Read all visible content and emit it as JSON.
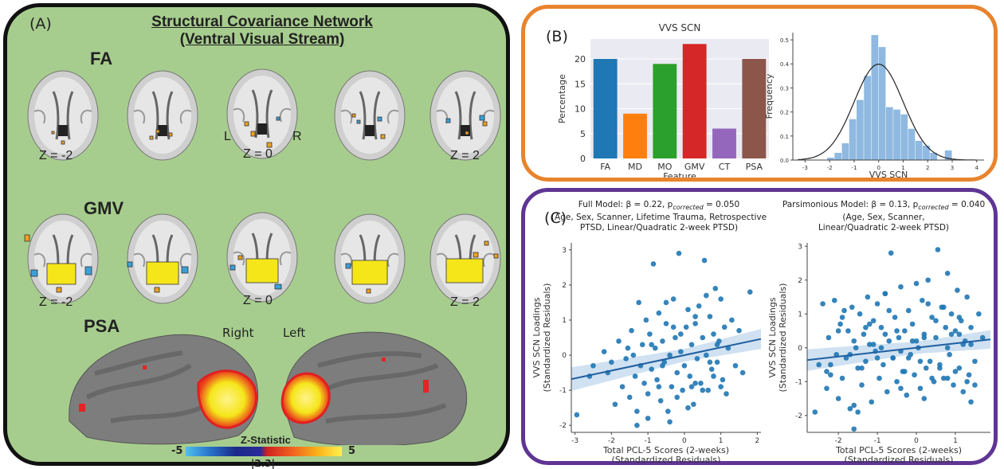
{
  "panel_a": {
    "letter": "(A)",
    "title_line1": "Structural Covariance Network",
    "title_line2": "(Ventral Visual Stream)",
    "row_fa": "FA",
    "row_gmv": "GMV",
    "row_psa": "PSA",
    "fa_z_labels": [
      "Z = -2",
      "Z = 0",
      "Z = 2"
    ],
    "gmv_z_labels": [
      "Z = -2",
      "Z = 0",
      "Z = 2"
    ],
    "orient_left": "L",
    "orient_right": "R",
    "hemi_right": "Right",
    "hemi_left": "Left",
    "colorbar_title": "Z-Statistic",
    "colorbar_min": "-5",
    "colorbar_max": "5",
    "colorbar_threshold": "|2.3|",
    "colors": {
      "background": "#a7cd8e",
      "positive": "#f5e61a",
      "negative": "#3aa0d8"
    }
  },
  "panel_b": {
    "letter": "(B)",
    "colors": {
      "border": "#e8842d"
    }
  },
  "panel_c": {
    "letter": "(C)",
    "left_title_1": "Full Model: β = 0.22, p",
    "left_title_sub": "corrected",
    "left_title_2": " = 0.050",
    "left_title_line2": "(Age, Sex, Scanner, Lifetime Trauma, Retrospective",
    "left_title_line3": "PTSD, Linear/Quadratic 2-week PTSD)",
    "right_title_1": "Parsimonious Model: β = 0.13, p",
    "right_title_sub": "corrected",
    "right_title_2": " = 0.040",
    "right_title_line2": "(Age, Sex, Scanner,",
    "right_title_line3": "Linear/Quadratic 2-week PTSD)",
    "colors": {
      "border": "#5f3594",
      "points": "#1f77b4"
    }
  },
  "chart_data": [
    {
      "type": "bar",
      "title": "VVS SCN",
      "xlabel": "Feature",
      "ylabel": "Percentage",
      "categories": [
        "FA",
        "MD",
        "MO",
        "GMV",
        "CT",
        "PSA"
      ],
      "values": [
        20,
        9,
        19,
        23,
        6,
        20
      ],
      "colors": [
        "#1f77b4",
        "#ff7f0e",
        "#2ca02c",
        "#d62728",
        "#9467bd",
        "#8c564b"
      ],
      "ylim": [
        0,
        24
      ],
      "yticks": [
        0,
        5,
        10,
        15,
        20
      ],
      "grid": true
    },
    {
      "type": "bar",
      "title": "",
      "xlabel": "VVS SCN",
      "ylabel": "Frequency",
      "bins": [
        {
          "x0": -2.1,
          "x1": -1.8,
          "f": 0.01
        },
        {
          "x0": -1.8,
          "x1": -1.5,
          "f": 0.03
        },
        {
          "x0": -1.5,
          "x1": -1.2,
          "f": 0.07
        },
        {
          "x0": -1.2,
          "x1": -0.9,
          "f": 0.17
        },
        {
          "x0": -0.9,
          "x1": -0.6,
          "f": 0.25
        },
        {
          "x0": -0.6,
          "x1": -0.3,
          "f": 0.35
        },
        {
          "x0": -0.3,
          "x1": 0.0,
          "f": 0.52
        },
        {
          "x0": 0.0,
          "x1": 0.3,
          "f": 0.47
        },
        {
          "x0": 0.3,
          "x1": 0.6,
          "f": 0.22
        },
        {
          "x0": 0.6,
          "x1": 0.9,
          "f": 0.21
        },
        {
          "x0": 0.9,
          "x1": 1.2,
          "f": 0.19
        },
        {
          "x0": 1.2,
          "x1": 1.5,
          "f": 0.13
        },
        {
          "x0": 1.5,
          "x1": 1.8,
          "f": 0.08
        },
        {
          "x0": 1.8,
          "x1": 2.1,
          "f": 0.06
        },
        {
          "x0": 2.1,
          "x1": 2.4,
          "f": 0.03
        },
        {
          "x0": 2.7,
          "x1": 3.0,
          "f": 0.04
        }
      ],
      "density_curve": {
        "mean": 0.0,
        "sd": 1.0
      },
      "xlim": [
        -3.5,
        4.3
      ],
      "ylim": [
        0,
        0.53
      ],
      "xticks": [
        -3,
        -2,
        -1,
        0,
        1,
        2,
        3,
        4
      ],
      "yticks": [
        0.0,
        0.1,
        0.2,
        0.3,
        0.4,
        0.5
      ],
      "color": "#8fb9e0"
    },
    {
      "type": "scatter",
      "xlabel": "Total PCL-5 Scores (2-weeks)",
      "xlabel2": "(Standardized Residuals)",
      "ylabel": "VVS SCN Loadings",
      "ylabel2": "(Standardized Residuals)",
      "xlim": [
        -3.1,
        2.1
      ],
      "ylim": [
        -2.2,
        3.2
      ],
      "xticks": [
        -3,
        -2,
        -1,
        0,
        1,
        2
      ],
      "yticks": [
        -2,
        -1,
        0,
        1,
        2,
        3
      ],
      "regression": {
        "intercept": 0.0,
        "slope": 0.22
      },
      "x": [
        -2.95,
        -2.6,
        -2.5,
        -2.2,
        -2.1,
        -2.0,
        -1.9,
        -1.8,
        -1.7,
        -1.6,
        -1.55,
        -1.5,
        -1.45,
        -1.4,
        -1.35,
        -1.3,
        -1.25,
        -1.2,
        -1.15,
        -1.1,
        -1.05,
        -1.0,
        -0.95,
        -0.9,
        -0.85,
        -0.8,
        -0.75,
        -0.7,
        -0.65,
        -0.6,
        -0.55,
        -0.5,
        -0.45,
        -0.4,
        -0.35,
        -0.3,
        -0.25,
        -0.2,
        -0.15,
        -0.1,
        -0.05,
        0.0,
        0.05,
        0.1,
        0.15,
        0.2,
        0.25,
        0.3,
        0.35,
        0.4,
        0.45,
        0.5,
        0.55,
        0.6,
        0.65,
        0.7,
        0.75,
        0.8,
        0.85,
        0.9,
        0.95,
        1.0,
        1.05,
        1.1,
        1.15,
        1.2,
        1.3,
        1.4,
        1.5,
        1.6,
        1.8,
        -1.3,
        -1.0,
        -0.7,
        -0.4,
        -0.2,
        0.1,
        0.3,
        0.5,
        0.8,
        1.0,
        -0.9,
        -0.5,
        -0.1,
        0.3,
        0.7,
        0.9,
        -0.3,
        -0.6,
        0.2,
        0.6
      ],
      "y": [
        -1.7,
        -0.6,
        -0.3,
        0.1,
        -0.5,
        -0.2,
        -1.4,
        0.4,
        -0.9,
        -0.1,
        0.2,
        -1.2,
        0.7,
        0.0,
        -0.6,
        -2.0,
        1.5,
        -0.3,
        0.3,
        -0.8,
        1.0,
        -1.1,
        0.6,
        -0.4,
        2.6,
        0.2,
        -0.7,
        1.2,
        -1.3,
        0.4,
        -0.2,
        0.9,
        -1.6,
        0.0,
        -0.9,
        1.6,
        0.5,
        -0.5,
        2.9,
        0.1,
        -1.0,
        -0.3,
        0.8,
        1.3,
        -0.6,
        0.3,
        -1.4,
        0.9,
        -0.1,
        1.4,
        -0.8,
        0.5,
        2.7,
        0.0,
        -1.0,
        1.1,
        -0.4,
        0.6,
        1.9,
        -0.2,
        0.4,
        1.6,
        -0.7,
        0.8,
        -1.1,
        0.2,
        1.0,
        -0.3,
        0.7,
        -0.5,
        1.8,
        -1.6,
        -1.8,
        -0.9,
        -1.9,
        -1.2,
        -1.5,
        -0.8,
        -1.0,
        -0.6,
        -0.9,
        0.3,
        1.5,
        0.6,
        1.1,
        -0.2,
        0.3,
        0.8,
        -0.3,
        -0.9,
        1.7
      ]
    },
    {
      "type": "scatter",
      "xlabel": "Total PCL-5 Scores (2-weeks)",
      "xlabel2": "(Standardized Residuals)",
      "ylabel": "VVS SCN Loadings",
      "ylabel2": "(Standardized Residuals)",
      "xlim": [
        -2.8,
        1.9
      ],
      "ylim": [
        -2.5,
        3.1
      ],
      "xticks": [
        -2,
        -1,
        0,
        1
      ],
      "yticks": [
        -2,
        -1,
        0,
        1,
        2,
        3
      ],
      "regression": {
        "intercept": 0.0,
        "slope": 0.13
      },
      "x": [
        -2.6,
        -2.5,
        -2.4,
        -2.3,
        -2.25,
        -2.2,
        -2.1,
        -2.05,
        -2.0,
        -1.95,
        -1.9,
        -1.85,
        -1.8,
        -1.75,
        -1.7,
        -1.65,
        -1.6,
        -1.55,
        -1.5,
        -1.45,
        -1.4,
        -1.35,
        -1.3,
        -1.25,
        -1.2,
        -1.15,
        -1.1,
        -1.05,
        -1.0,
        -0.95,
        -0.9,
        -0.85,
        -0.8,
        -0.75,
        -0.7,
        -0.65,
        -0.6,
        -0.55,
        -0.5,
        -0.45,
        -0.4,
        -0.35,
        -0.3,
        -0.25,
        -0.2,
        -0.15,
        -0.1,
        -0.05,
        0.0,
        0.05,
        0.1,
        0.15,
        0.2,
        0.25,
        0.3,
        0.35,
        0.4,
        0.45,
        0.5,
        0.55,
        0.6,
        0.65,
        0.7,
        0.75,
        0.8,
        0.85,
        0.9,
        0.95,
        1.0,
        1.05,
        1.1,
        1.15,
        1.2,
        1.25,
        1.3,
        1.35,
        1.4,
        1.5,
        1.6,
        1.7,
        -2.3,
        -1.9,
        -1.6,
        -1.3,
        -1.0,
        -0.7,
        -0.4,
        -0.1,
        0.2,
        0.5,
        0.8,
        1.1,
        1.4,
        -2.0,
        -1.4,
        -0.8,
        -0.2,
        0.4,
        1.0,
        1.3,
        -1.7,
        -1.1,
        -0.5,
        0.1,
        0.7,
        1.2,
        -2.2,
        -1.5,
        -0.9,
        -0.3,
        0.3,
        0.9,
        1.5,
        -1.2,
        -0.6,
        0.0,
        0.6,
        1.1,
        -0.8,
        0.2,
        0.8,
        1.4,
        -1.6,
        -0.4
      ],
      "y": [
        -1.9,
        -0.5,
        1.3,
        -1.2,
        0.3,
        -0.8,
        1.4,
        -0.2,
        -1.5,
        0.7,
        -0.9,
        1.1,
        -0.3,
        0.5,
        -1.8,
        1.2,
        -2.4,
        0.0,
        -0.6,
        1.0,
        -1.1,
        0.4,
        -0.4,
        1.5,
        0.1,
        -1.6,
        0.8,
        -0.1,
        1.3,
        -0.9,
        0.6,
        -0.5,
        1.6,
        -1.3,
        0.2,
        2.8,
        -0.3,
        0.9,
        -1.0,
        0.3,
        1.8,
        -0.7,
        0.5,
        -1.4,
        1.1,
        -0.2,
        0.7,
        -0.8,
        1.9,
        0.0,
        -1.2,
        1.4,
        0.4,
        -0.6,
        2.0,
        -0.4,
        0.9,
        -1.0,
        0.3,
        2.9,
        -0.5,
        1.2,
        -0.9,
        0.6,
        2.2,
        -0.2,
        1.0,
        -1.1,
        0.5,
        1.7,
        -0.6,
        0.8,
        -1.3,
        0.2,
        1.5,
        -0.8,
        0.6,
        -0.4,
        1.0,
        0.3,
        -0.7,
        0.9,
        -1.7,
        0.6,
        -0.3,
        1.1,
        -1.2,
        0.2,
        -1.5,
        0.8,
        -0.9,
        0.4,
        -1.6,
        0.5,
        -0.6,
        0.4,
        -0.3,
        -0.9,
        -0.7,
        -1.0,
        -0.2,
        0.1,
        0.5,
        -0.4,
        1.2,
        0.1,
        -0.5,
        -1.9,
        0.0,
        -0.7,
        1.3,
        0.4,
        -1.1,
        0.7,
        -0.3,
        0.2,
        -0.6,
        0.9,
        1.6,
        0.3,
        0.0,
        0.1,
        0.2,
        -0.1
      ]
    }
  ]
}
